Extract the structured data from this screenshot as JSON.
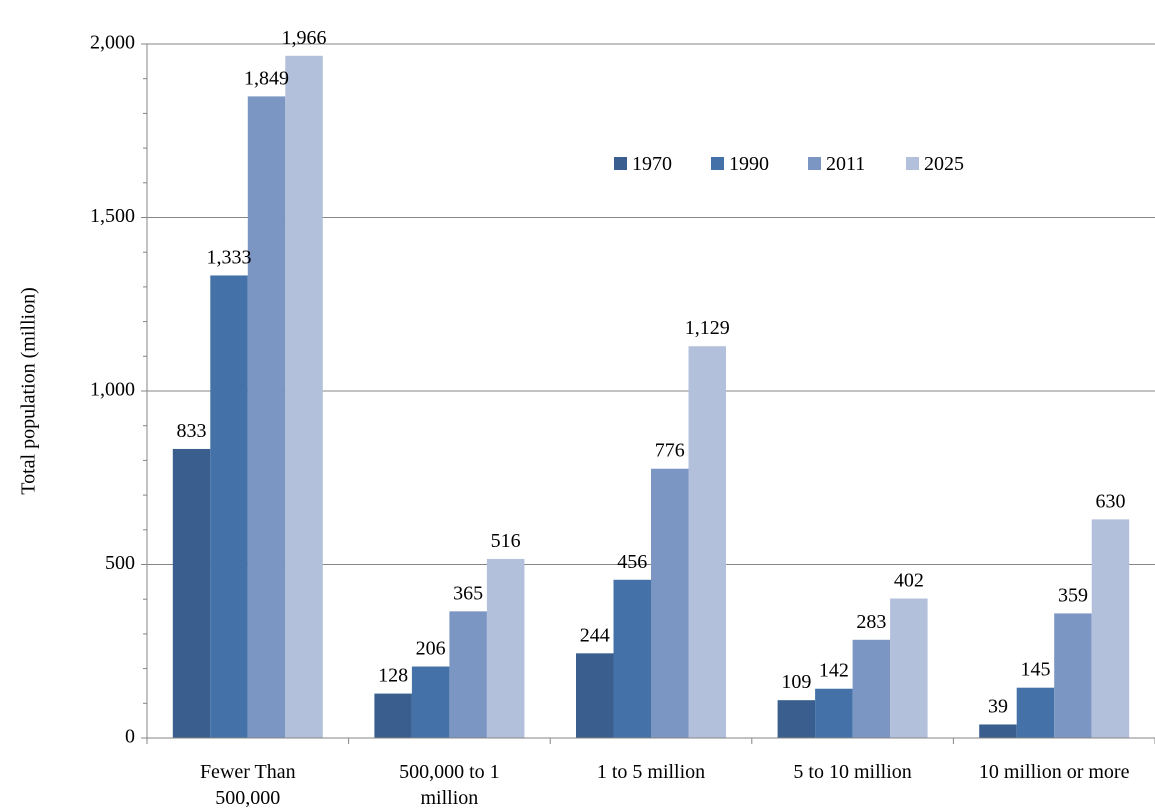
{
  "chart_data": {
    "type": "bar",
    "title": "",
    "xlabel": "",
    "ylabel": "Total population (million)",
    "ylim": [
      0,
      2000
    ],
    "yticks": [
      0,
      500,
      1000,
      1500,
      2000
    ],
    "ytick_labels": [
      "0",
      "500",
      "1,000",
      "1,500",
      "2,000"
    ],
    "grid": true,
    "legend_position": "top-right",
    "categories": [
      "Fewer Than 500,000",
      "500,000 to 1 million",
      "1 to 5 million",
      "5 to 10 million",
      "10 million or more"
    ],
    "category_lines": [
      [
        "Fewer Than",
        "500,000"
      ],
      [
        "500,000 to 1",
        "million"
      ],
      [
        "1 to 5 million"
      ],
      [
        "5 to 10 million"
      ],
      [
        "10 million or more"
      ]
    ],
    "series": [
      {
        "name": "1970",
        "color": "#3a5f8f",
        "values": [
          833,
          128,
          244,
          109,
          39
        ],
        "labels": [
          "833",
          "128",
          "244",
          "109",
          "39"
        ]
      },
      {
        "name": "1990",
        "color": "#4472a8",
        "values": [
          1333,
          206,
          456,
          142,
          145
        ],
        "labels": [
          "1,333",
          "206",
          "456",
          "142",
          "145"
        ]
      },
      {
        "name": "2011",
        "color": "#7b96c2",
        "values": [
          1849,
          365,
          776,
          283,
          359
        ],
        "labels": [
          "1,849",
          "365",
          "776",
          "283",
          "359"
        ]
      },
      {
        "name": "2025",
        "color": "#b3c0dc",
        "values": [
          1966,
          516,
          1129,
          402,
          630
        ],
        "labels": [
          "1,966",
          "516",
          "1,129",
          "402",
          "630"
        ]
      }
    ]
  }
}
